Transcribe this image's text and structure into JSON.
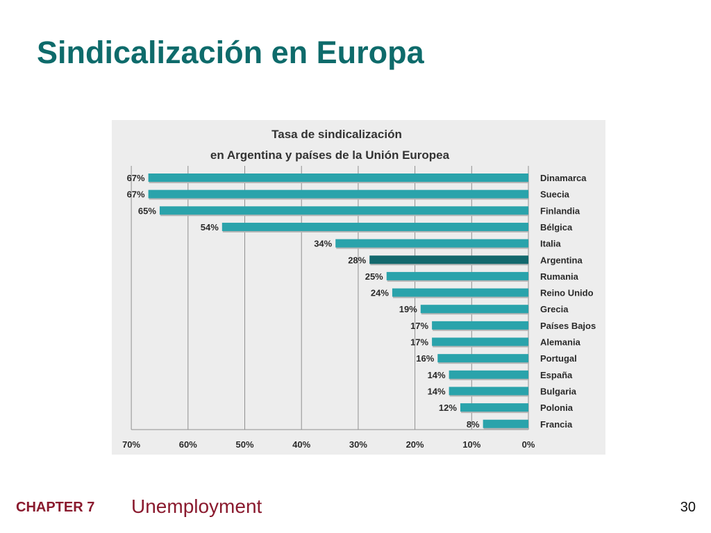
{
  "slide": {
    "title": "Sindicalización en Europa",
    "footer_chapter": "CHAPTER 7",
    "footer_topic": "Unemployment",
    "page_number": "30"
  },
  "colors": {
    "title": "#0e6b6b",
    "bar": "#2aa3ab",
    "bar_highlight": "#13686d",
    "footer": "#8a1a2e"
  },
  "chart_data": {
    "type": "bar",
    "orientation": "horizontal",
    "x_direction": "reversed",
    "title_lines": [
      "Tasa de sindicalización",
      "en Argentina y países de la Unión Europea"
    ],
    "categories": [
      "Dinamarca",
      "Suecia",
      "Finlandia",
      "Bélgica",
      "Italia",
      "Argentina",
      "Rumania",
      "Reino Unido",
      "Grecia",
      "Países Bajos",
      "Alemania",
      "Portugal",
      "España",
      "Bulgaria",
      "Polonia",
      "Francia"
    ],
    "values": [
      67,
      67,
      65,
      54,
      34,
      28,
      25,
      24,
      19,
      17,
      17,
      16,
      14,
      14,
      12,
      8
    ],
    "value_labels": [
      "67%",
      "67%",
      "65%",
      "54%",
      "34%",
      "28%",
      "25%",
      "24%",
      "19%",
      "17%",
      "17%",
      "16%",
      "14%",
      "14%",
      "12%",
      "8%"
    ],
    "highlight": "Argentina",
    "xlim": [
      0,
      70
    ],
    "x_ticks": [
      70,
      60,
      50,
      40,
      30,
      20,
      10,
      0
    ],
    "x_tick_labels": [
      "70%",
      "60%",
      "50%",
      "40%",
      "30%",
      "20%",
      "10%",
      "0%"
    ],
    "grid": "vertical",
    "xlabel": "",
    "ylabel": ""
  }
}
